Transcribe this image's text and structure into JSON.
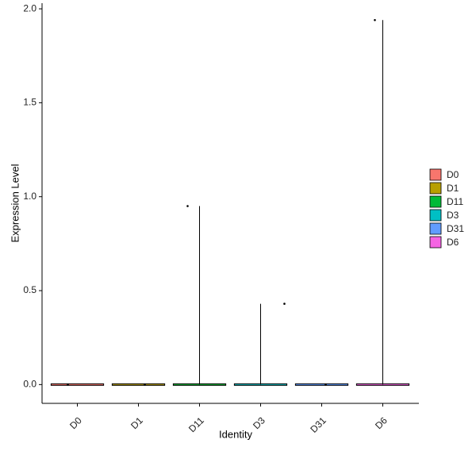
{
  "chart_data": {
    "type": "violin",
    "categories": [
      "D0",
      "D1",
      "D11",
      "D3",
      "D31",
      "D6"
    ],
    "values": [
      0,
      0,
      0.95,
      0.43,
      0,
      1.94
    ],
    "colors": [
      "#F8766D",
      "#B79F00",
      "#00BA38",
      "#00BFC4",
      "#619CFF",
      "#F564E3"
    ],
    "ylim": [
      -0.1,
      2.03
    ],
    "yticks": [
      {
        "value": 0,
        "label": "0.0"
      },
      {
        "value": 0.5,
        "label": "0.5"
      },
      {
        "value": 1,
        "label": "1.0"
      },
      {
        "value": 1.5,
        "label": "1.5"
      },
      {
        "value": 2,
        "label": "2.0"
      }
    ],
    "xlabel": "Identity",
    "ylabel": "Expression Level"
  }
}
